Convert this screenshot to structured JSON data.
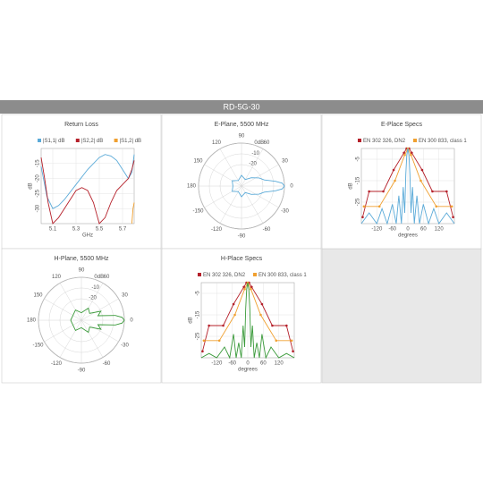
{
  "header": {
    "title": "RD-5G-30"
  },
  "chart_data": [
    {
      "type": "line",
      "title": "Return Loss",
      "xlabel": "GHz",
      "ylabel": "dB",
      "xlim": [
        5.0,
        5.8
      ],
      "xticks": [
        5.1,
        5.3,
        5.5,
        5.7
      ],
      "ylim": [
        -35,
        -10
      ],
      "yticks": [
        -30,
        -25,
        -20,
        -15
      ],
      "series": [
        {
          "name": "|S1,1| dB",
          "color": "#5aaad8",
          "x": [
            5.0,
            5.05,
            5.1,
            5.15,
            5.2,
            5.3,
            5.4,
            5.5,
            5.55,
            5.6,
            5.65,
            5.7,
            5.75,
            5.78,
            5.8
          ],
          "values": [
            -16,
            -26,
            -30,
            -29,
            -27,
            -22,
            -17,
            -13,
            -12,
            -12.5,
            -14,
            -17,
            -20,
            -18,
            -12
          ]
        },
        {
          "name": "|S2,2| dB",
          "color": "#b5202a",
          "x": [
            5.0,
            5.03,
            5.06,
            5.1,
            5.15,
            5.2,
            5.25,
            5.3,
            5.35,
            5.4,
            5.45,
            5.5,
            5.55,
            5.6,
            5.65,
            5.7,
            5.75,
            5.78,
            5.8
          ],
          "values": [
            -13,
            -20,
            -28,
            -35,
            -33,
            -30,
            -27,
            -24,
            -23,
            -24,
            -28,
            -35,
            -33,
            -28,
            -24,
            -22,
            -20,
            -17,
            -14
          ]
        },
        {
          "name": "|S1,2| dB",
          "color": "#f0a030",
          "x": [
            5.78,
            5.79,
            5.8
          ],
          "values": [
            -35,
            -30,
            -28
          ]
        }
      ]
    },
    {
      "type": "polar",
      "title": "E-Plane, 5500 MHz",
      "rlim": [
        -40,
        0
      ],
      "rticks": [
        -20,
        -10,
        {
          "value": 0,
          "label": "0dB"
        }
      ],
      "thetaticks": [
        0,
        30,
        60,
        90,
        120,
        150,
        180,
        -150,
        -120,
        -90,
        -60,
        -30
      ],
      "series": [
        {
          "color": "#5aaad8",
          "theta": [
            -180,
            -150,
            -120,
            -90,
            -60,
            -40,
            -25,
            -15,
            -8,
            -4,
            0,
            4,
            8,
            15,
            25,
            40,
            60,
            90,
            120,
            150,
            180
          ],
          "values": [
            -32,
            -30,
            -34,
            -30,
            -33,
            -28,
            -22,
            -18,
            -8,
            -2,
            0,
            -2,
            -8,
            -18,
            -22,
            -28,
            -33,
            -30,
            -34,
            -30,
            -32
          ]
        }
      ]
    },
    {
      "type": "line",
      "title": "E-Place Specs",
      "xlabel": "degrees",
      "ylabel": "dB",
      "xlim": [
        -180,
        180
      ],
      "xticks": [
        -120,
        -60,
        0,
        60,
        120
      ],
      "ylim": [
        -35,
        0
      ],
      "yticks": [
        -25,
        -15,
        -5
      ],
      "series": [
        {
          "name": "EN 302 326, DN2",
          "color": "#b5202a",
          "markers": true,
          "x": [
            -175,
            -150,
            -95,
            -55,
            -15,
            -5,
            5,
            15,
            55,
            95,
            150,
            175
          ],
          "values": [
            -32,
            -20,
            -20,
            -10,
            -2,
            0,
            0,
            -2,
            -10,
            -20,
            -20,
            -32
          ]
        },
        {
          "name": "EN 300 833, class 1",
          "color": "#f0a030",
          "markers": true,
          "x": [
            -170,
            -110,
            -50,
            -12,
            0,
            12,
            50,
            110,
            170
          ],
          "values": [
            -27,
            -27,
            -15,
            -3,
            0,
            -3,
            -15,
            -27,
            -27
          ]
        },
        {
          "color": "#5aaad8",
          "x": [
            -180,
            -150,
            -120,
            -100,
            -80,
            -60,
            -45,
            -35,
            -25,
            -18,
            -12,
            -8,
            -4,
            0,
            4,
            8,
            12,
            18,
            25,
            35,
            45,
            60,
            80,
            100,
            120,
            150,
            180
          ],
          "values": [
            -35,
            -30,
            -35,
            -28,
            -35,
            -26,
            -35,
            -22,
            -35,
            -18,
            -30,
            -12,
            -3,
            0,
            -3,
            -12,
            -30,
            -18,
            -35,
            -22,
            -35,
            -26,
            -35,
            -28,
            -35,
            -30,
            -35
          ]
        }
      ]
    },
    {
      "type": "polar",
      "title": "H-Plane, 5500 MHz",
      "rlim": [
        -40,
        0
      ],
      "rticks": [
        -20,
        -10,
        {
          "value": 0,
          "label": "0dB"
        }
      ],
      "thetaticks": [
        0,
        30,
        60,
        90,
        120,
        150,
        180,
        -150,
        -120,
        -90,
        -60,
        -30
      ],
      "series": [
        {
          "color": "#3a9a3a",
          "theta": [
            -180,
            -150,
            -120,
            -90,
            -60,
            -40,
            -25,
            -15,
            -8,
            -4,
            0,
            4,
            8,
            15,
            25,
            40,
            60,
            90,
            120,
            150,
            180
          ],
          "values": [
            -30,
            -31,
            -29,
            -33,
            -27,
            -30,
            -20,
            -24,
            -8,
            -2,
            0,
            -2,
            -8,
            -24,
            -20,
            -30,
            -27,
            -33,
            -29,
            -31,
            -30
          ]
        }
      ]
    },
    {
      "type": "line",
      "title": "H-Place Specs",
      "xlabel": "degrees",
      "ylabel": "dB",
      "xlim": [
        -180,
        180
      ],
      "xticks": [
        -120,
        -60,
        0,
        60,
        120
      ],
      "ylim": [
        -35,
        0
      ],
      "yticks": [
        -25,
        -15,
        -5
      ],
      "series": [
        {
          "name": "EN 302 326, DN2",
          "color": "#b5202a",
          "markers": true,
          "x": [
            -175,
            -150,
            -95,
            -55,
            -15,
            -5,
            5,
            15,
            55,
            95,
            150,
            175
          ],
          "values": [
            -32,
            -20,
            -20,
            -10,
            -2,
            0,
            0,
            -2,
            -10,
            -20,
            -20,
            -32
          ]
        },
        {
          "name": "EN 300 833, class 1",
          "color": "#f0a030",
          "markers": true,
          "x": [
            -170,
            -110,
            -50,
            -12,
            0,
            12,
            50,
            110,
            170
          ],
          "values": [
            -27,
            -27,
            -15,
            -3,
            0,
            -3,
            -15,
            -27,
            -27
          ]
        },
        {
          "color": "#3a9a3a",
          "x": [
            -180,
            -150,
            -120,
            -90,
            -70,
            -55,
            -45,
            -35,
            -25,
            -18,
            -12,
            -8,
            -4,
            0,
            4,
            8,
            12,
            18,
            25,
            35,
            45,
            55,
            70,
            90,
            120,
            150,
            180
          ],
          "values": [
            -35,
            -33,
            -35,
            -30,
            -35,
            -24,
            -35,
            -28,
            -35,
            -20,
            -30,
            -12,
            -3,
            0,
            -3,
            -12,
            -30,
            -20,
            -35,
            -28,
            -35,
            -24,
            -35,
            -30,
            -35,
            -33,
            -35
          ]
        }
      ]
    }
  ]
}
